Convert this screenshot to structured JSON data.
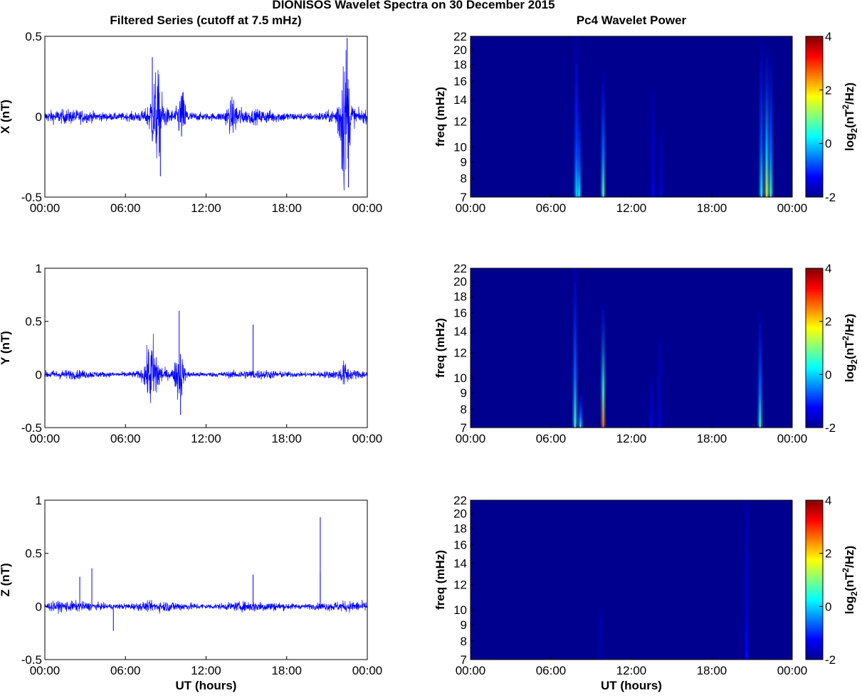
{
  "figure": {
    "title": "DIONISOS Wavelet Spectra on 30 December 2015",
    "left_column_title": "Filtered Series (cutoff at 7.5 mHz)",
    "right_column_title": "Pc4 Wavelet Power",
    "colors": {
      "trace": "#0000ff",
      "spectrum_background": "#00008f"
    }
  },
  "chart_data": [
    {
      "type": "line",
      "ylabel": "X (nT)",
      "xlabel": "",
      "x_ticks": [
        "00:00",
        "06:00",
        "12:00",
        "18:00",
        "00:00"
      ],
      "xlim_hours": [
        0,
        24
      ],
      "ylim": [
        -0.5,
        0.5
      ],
      "y_ticks": [
        "-0.5",
        "0",
        "0.5"
      ],
      "y_tick_values": [
        -0.5,
        0,
        0.5
      ],
      "noise_amplitude": 0.04,
      "bursts": [
        {
          "center_h": 8.3,
          "width_h": 0.9,
          "amp": 0.22
        },
        {
          "center_h": 10.2,
          "width_h": 0.6,
          "amp": 0.12
        },
        {
          "center_h": 14.0,
          "width_h": 1.0,
          "amp": 0.07
        },
        {
          "center_h": 22.3,
          "width_h": 0.8,
          "amp": 0.38
        }
      ],
      "spikes": [
        {
          "t_h": 8.0,
          "v": 0.37
        },
        {
          "t_h": 8.6,
          "v": -0.37
        },
        {
          "t_h": 22.5,
          "v": 0.49
        },
        {
          "t_h": 22.6,
          "v": -0.44
        }
      ]
    },
    {
      "type": "line",
      "ylabel": "Y (nT)",
      "xlabel": "",
      "x_ticks": [
        "00:00",
        "06:00",
        "12:00",
        "18:00",
        "00:00"
      ],
      "xlim_hours": [
        0,
        24
      ],
      "ylim": [
        -0.5,
        1
      ],
      "y_ticks": [
        "-0.5",
        "0",
        "0.5",
        "1"
      ],
      "y_tick_values": [
        -0.5,
        0,
        0.5,
        1
      ],
      "noise_amplitude": 0.04,
      "bursts": [
        {
          "center_h": 8.0,
          "width_h": 1.0,
          "amp": 0.28
        },
        {
          "center_h": 10.0,
          "width_h": 0.6,
          "amp": 0.22
        },
        {
          "center_h": 22.3,
          "width_h": 0.6,
          "amp": 0.07
        }
      ],
      "spikes": [
        {
          "t_h": 10.0,
          "v": 0.6
        },
        {
          "t_h": 15.5,
          "v": 0.47
        },
        {
          "t_h": 10.1,
          "v": -0.38
        }
      ]
    },
    {
      "type": "line",
      "ylabel": "Z (nT)",
      "xlabel": "UT (hours)",
      "x_ticks": [
        "00:00",
        "06:00",
        "12:00",
        "18:00",
        "00:00"
      ],
      "xlim_hours": [
        0,
        24
      ],
      "ylim": [
        -0.5,
        1
      ],
      "y_ticks": [
        "-0.5",
        "0",
        "0.5",
        "1"
      ],
      "y_tick_values": [
        -0.5,
        0,
        0.5,
        1
      ],
      "noise_amplitude": 0.045,
      "bursts": [],
      "spikes": [
        {
          "t_h": 2.6,
          "v": 0.28
        },
        {
          "t_h": 3.5,
          "v": 0.36
        },
        {
          "t_h": 5.1,
          "v": -0.23
        },
        {
          "t_h": 15.5,
          "v": 0.3
        },
        {
          "t_h": 20.5,
          "v": 0.84
        },
        {
          "t_h": 20.5,
          "v": 0.32
        }
      ]
    },
    {
      "type": "heatmap",
      "ylabel": "freq (mHz)",
      "xlabel": "",
      "colorbar_label": "log2(nT2/Hz)",
      "x_ticks": [
        "00:00",
        "06:00",
        "12:00",
        "18:00",
        "00:00"
      ],
      "xlim_hours": [
        0,
        24
      ],
      "ylim_mhz": [
        7,
        22
      ],
      "y_ticks": [
        "7",
        "8",
        "9",
        "10",
        "12",
        "14",
        "16",
        "18",
        "20",
        "22"
      ],
      "y_tick_values": [
        7,
        8,
        9,
        10,
        12,
        14,
        16,
        18,
        20,
        22
      ],
      "y_scale": "log",
      "clim": [
        -2,
        4
      ],
      "colorbar_ticks": [
        "-2",
        "0",
        "2",
        "4"
      ],
      "colorbar_tick_values": [
        -2,
        0,
        2,
        4
      ],
      "features": [
        {
          "t_h": 7.9,
          "f_top_mhz": 22,
          "peak": 0.0
        },
        {
          "t_h": 8.1,
          "f_top_mhz": 14,
          "peak": 0.3
        },
        {
          "t_h": 9.9,
          "f_top_mhz": 17,
          "peak": 0.8
        },
        {
          "t_h": 13.6,
          "f_top_mhz": 15,
          "peak": -1.3
        },
        {
          "t_h": 14.2,
          "f_top_mhz": 11,
          "peak": -1.4
        },
        {
          "t_h": 21.7,
          "f_top_mhz": 21,
          "peak": 0.4
        },
        {
          "t_h": 22.1,
          "f_top_mhz": 20,
          "peak": 1.6
        },
        {
          "t_h": 22.4,
          "f_top_mhz": 19,
          "peak": 0.6
        }
      ]
    },
    {
      "type": "heatmap",
      "ylabel": "freq (mHz)",
      "xlabel": "",
      "colorbar_label": "log2(nT2/Hz)",
      "x_ticks": [
        "00:00",
        "06:00",
        "12:00",
        "18:00",
        "00:00"
      ],
      "xlim_hours": [
        0,
        24
      ],
      "ylim_mhz": [
        7,
        22
      ],
      "y_ticks": [
        "7",
        "8",
        "9",
        "10",
        "12",
        "14",
        "16",
        "18",
        "20",
        "22"
      ],
      "y_tick_values": [
        7,
        8,
        9,
        10,
        12,
        14,
        16,
        18,
        20,
        22
      ],
      "y_scale": "log",
      "clim": [
        -2,
        4
      ],
      "colorbar_ticks": [
        "-2",
        "0",
        "2",
        "4"
      ],
      "colorbar_tick_values": [
        -2,
        0,
        2,
        4
      ],
      "features": [
        {
          "t_h": 7.8,
          "f_top_mhz": 22,
          "peak": 0.6
        },
        {
          "t_h": 8.2,
          "f_top_mhz": 9,
          "peak": 0.5
        },
        {
          "t_h": 9.9,
          "f_top_mhz": 17,
          "peak": 2.6
        },
        {
          "t_h": 13.5,
          "f_top_mhz": 10,
          "peak": -1.2
        },
        {
          "t_h": 14.1,
          "f_top_mhz": 13,
          "peak": -1.4
        },
        {
          "t_h": 21.6,
          "f_top_mhz": 16,
          "peak": 0.6
        }
      ]
    },
    {
      "type": "heatmap",
      "ylabel": "freq (mHz)",
      "xlabel": "UT (hours)",
      "colorbar_label": "log2(nT2/Hz)",
      "x_ticks": [
        "00:00",
        "06:00",
        "12:00",
        "18:00",
        "00:00"
      ],
      "xlim_hours": [
        0,
        24
      ],
      "ylim_mhz": [
        7,
        22
      ],
      "y_ticks": [
        "7",
        "8",
        "9",
        "10",
        "12",
        "14",
        "16",
        "18",
        "20",
        "22"
      ],
      "y_tick_values": [
        7,
        8,
        9,
        10,
        12,
        14,
        16,
        18,
        20,
        22
      ],
      "y_scale": "log",
      "clim": [
        -2,
        4
      ],
      "colorbar_ticks": [
        "-2",
        "0",
        "2",
        "4"
      ],
      "colorbar_tick_values": [
        -2,
        0,
        2,
        4
      ],
      "features": [
        {
          "t_h": 9.7,
          "f_top_mhz": 10,
          "peak": -1.7
        },
        {
          "t_h": 20.6,
          "f_top_mhz": 22,
          "peak": -1.2
        }
      ]
    }
  ]
}
